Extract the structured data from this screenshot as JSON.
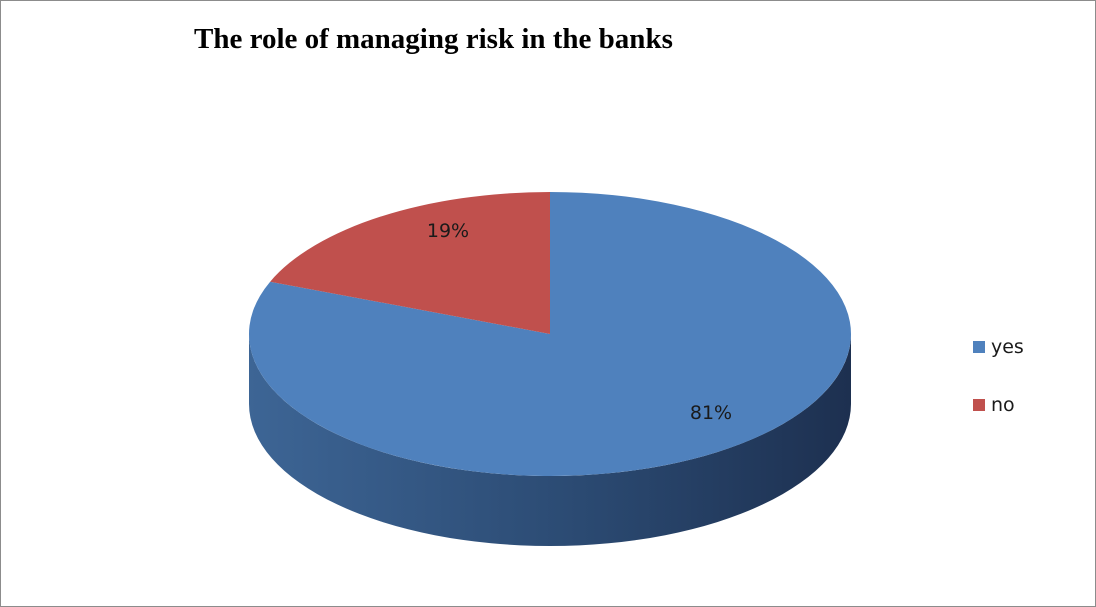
{
  "chart_data": {
    "type": "pie",
    "title": "The role of managing risk in the banks",
    "categories": [
      "yes",
      "no"
    ],
    "values": [
      81,
      19
    ],
    "data_labels": [
      "81%",
      "19%"
    ],
    "colors": [
      "#4f81bd",
      "#c0504d"
    ],
    "legend_position": "right",
    "style": "3d"
  }
}
